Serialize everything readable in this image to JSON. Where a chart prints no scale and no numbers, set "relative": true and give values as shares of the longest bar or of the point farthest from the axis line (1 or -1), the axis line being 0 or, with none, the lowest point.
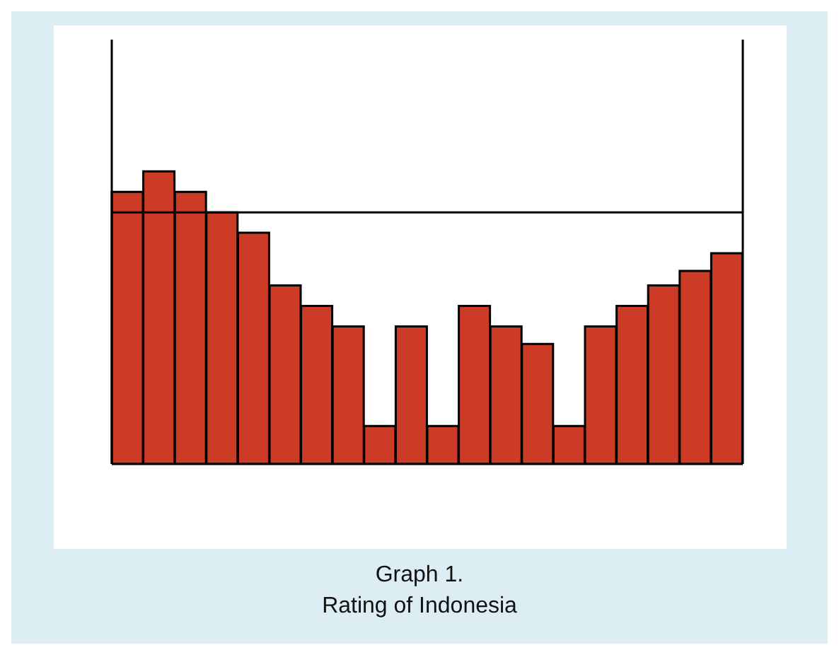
{
  "chart_data": {
    "type": "bar",
    "title": "Graph 1.",
    "subtitle": "Rating of Indonesia",
    "relative": true,
    "categories": [
      null,
      null,
      null,
      null,
      null,
      null,
      null,
      null,
      null,
      null,
      null,
      null,
      null,
      null,
      null,
      null,
      null,
      null,
      null,
      null
    ],
    "values": [
      0.93,
      1,
      0.93,
      0.86,
      0.79,
      0.61,
      0.54,
      0.47,
      0.13,
      0.47,
      0.13,
      0.54,
      0.47,
      0.41,
      0.13,
      0.47,
      0.54,
      0.61,
      0.66,
      0.72
    ],
    "color": "#cc3b25",
    "ref_lines": [
      {
        "axis": "y",
        "value": 0.86,
        "color": "#000000"
      }
    ]
  }
}
